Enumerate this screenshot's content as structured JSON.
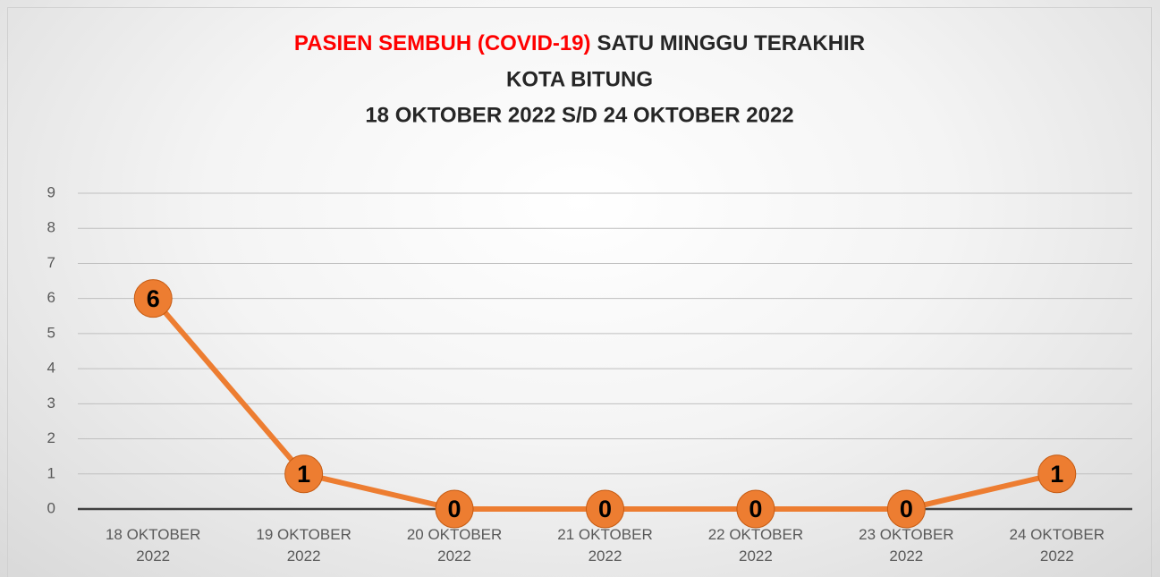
{
  "chart_data": {
    "type": "line",
    "title": [
      [
        "PASIEN SEMBUH (COVID-19)",
        "SATU MINGGU TERAKHIR"
      ],
      "KOTA BITUNG",
      "18 OKTOBER 2022 S/D 24 OKTOBER 2022"
    ],
    "title_highlight_color": "#ff0000",
    "categories": [
      "18 OKTOBER 2022",
      "19 OKTOBER 2022",
      "20 OKTOBER 2022",
      "21 OKTOBER 2022",
      "22 OKTOBER 2022",
      "23 OKTOBER 2022",
      "24 OKTOBER 2022"
    ],
    "values": [
      6,
      1,
      0,
      0,
      0,
      0,
      1
    ],
    "color": "#ed7d31",
    "ylim": [
      0,
      9
    ],
    "yticks": [
      0,
      1,
      2,
      3,
      4,
      5,
      6,
      7,
      8,
      9
    ],
    "grid": true
  }
}
